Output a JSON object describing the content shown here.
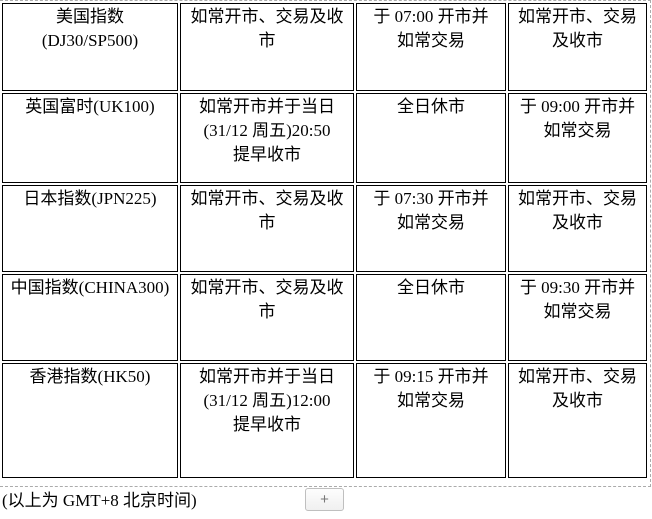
{
  "table": {
    "rows": [
      {
        "cells": [
          "美国指数\n(DJ30/SP500)",
          "如常开市、交易及收\n市",
          "于 07:00 开市并\n如常交易",
          "如常开市、交易\n及收市"
        ]
      },
      {
        "cells": [
          "英国富时(UK100)",
          "如常开市并于当日\n(31/12 周五)20:50\n提早收市",
          "全日休市",
          "于 09:00 开市并\n如常交易"
        ]
      },
      {
        "cells": [
          "日本指数(JPN225)",
          "如常开市、交易及收\n市",
          "于 07:30 开市并\n如常交易",
          "如常开市、交易\n及收市"
        ]
      },
      {
        "cells": [
          "中国指数(CHINA300)",
          "如常开市、交易及收\n市",
          "全日休市",
          "于 09:30 开市并\n如常交易"
        ]
      },
      {
        "cells": [
          "香港指数(HK50)",
          "如常开市并于当日\n(31/12 周五)12:00\n提早收市",
          "于 09:15 开市并\n如常交易",
          "如常开市、交易\n及收市"
        ]
      }
    ]
  },
  "footer": {
    "note": "(以上为 GMT+8 北京时间)",
    "add_button_label": "+"
  },
  "colors": {
    "cell_border": "#000000",
    "editor_outline": "#ababab",
    "button_border": "#bfbfbf",
    "button_text": "#777777",
    "text": "#000000"
  }
}
